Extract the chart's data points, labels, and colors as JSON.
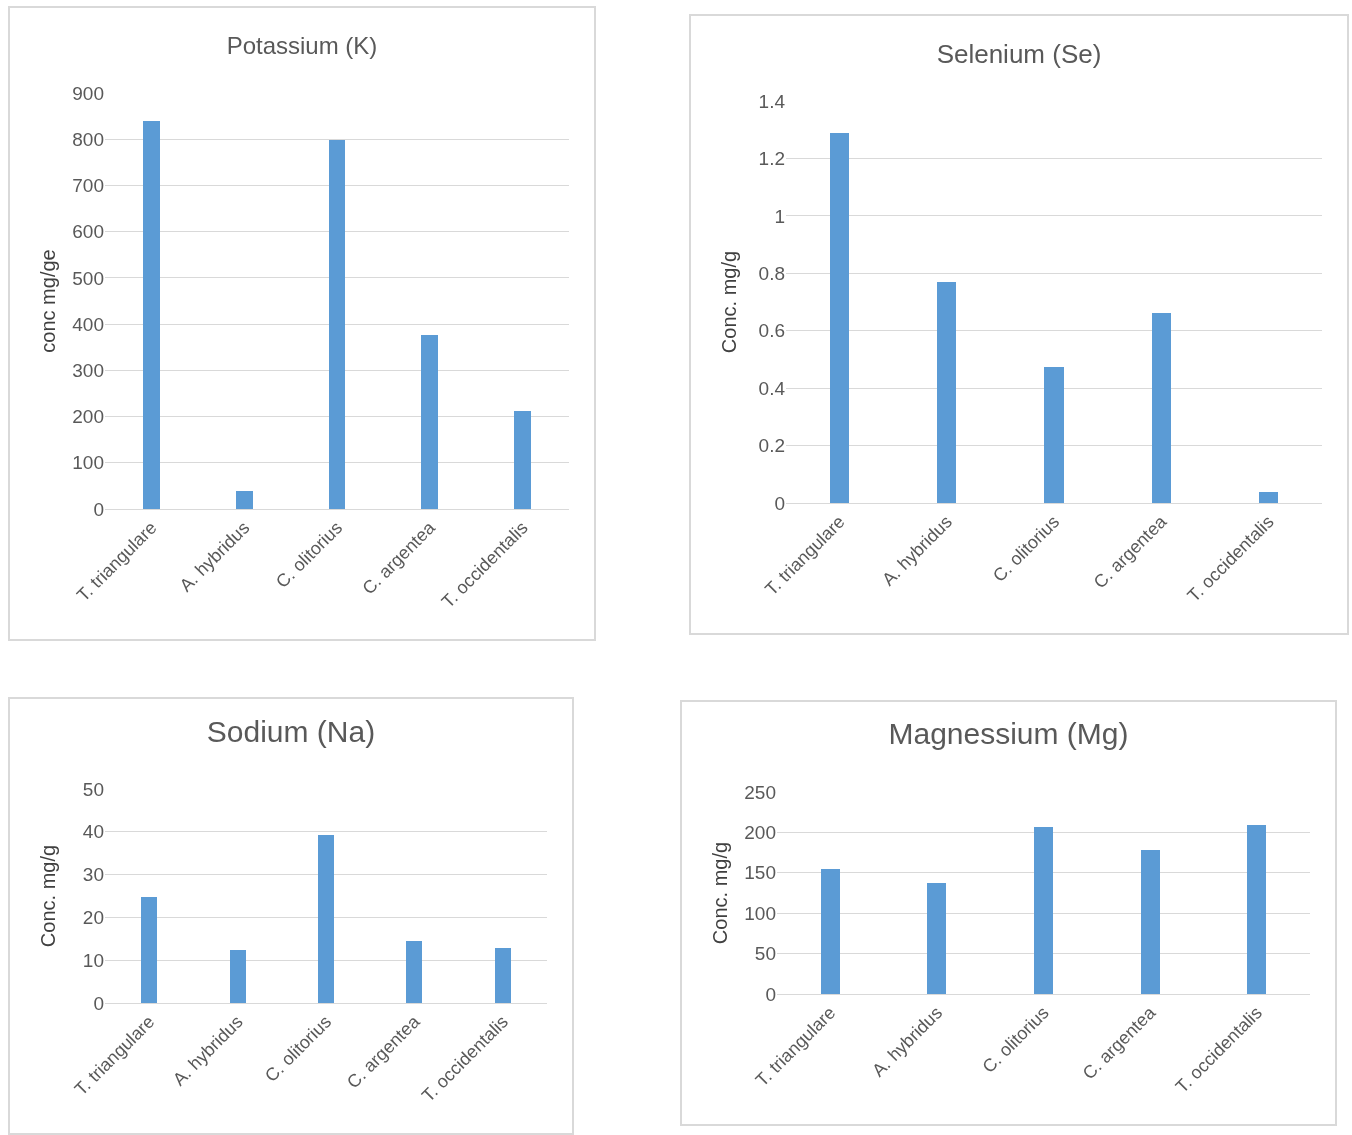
{
  "chart_data": [
    {
      "type": "bar",
      "title": "Potassium (K)",
      "ylabel": "conc mg/ge",
      "categories": [
        "T. triangulare",
        "A. hybridus",
        "C. olitorius",
        "C. argentea",
        "T. occidentalis"
      ],
      "values": [
        840,
        40,
        798,
        376,
        213
      ],
      "color": "#5b9bd5",
      "ylim": [
        0,
        900
      ],
      "yticks": [
        0,
        100,
        200,
        300,
        400,
        500,
        600,
        700,
        800,
        900
      ],
      "grid": "y"
    },
    {
      "type": "bar",
      "title": "Selenium (Se)",
      "ylabel": "Conc. mg/g",
      "categories": [
        "T. triangulare",
        "A. hybridus",
        "C. olitorius",
        "C. argentea",
        "T. occidentalis"
      ],
      "values": [
        1.29,
        0.77,
        0.475,
        0.66,
        0.04
      ],
      "color": "#5b9bd5",
      "ylim": [
        0,
        1.4
      ],
      "yticks": [
        0,
        0.2,
        0.4,
        0.6,
        0.8,
        1,
        1.2,
        1.4
      ],
      "grid": "y"
    },
    {
      "type": "bar",
      "title": "Sodium (Na)",
      "ylabel": "Conc. mg/g",
      "categories": [
        "T. triangulare",
        "A. hybridus",
        "C. olitorius",
        "C. argentea",
        "T. occidentalis"
      ],
      "values": [
        24.8,
        12.3,
        39.3,
        14.6,
        12.8
      ],
      "color": "#5b9bd5",
      "ylim": [
        0,
        50
      ],
      "yticks": [
        0,
        10,
        20,
        30,
        40,
        50
      ],
      "grid": "y"
    },
    {
      "type": "bar",
      "title": "Magnessium (Mg)",
      "ylabel": "Conc. mg/g",
      "categories": [
        "T. triangulare",
        "A. hybridus",
        "C. olitorius",
        "C. argentea",
        "T. occidentalis"
      ],
      "values": [
        155,
        137,
        207,
        178,
        209
      ],
      "color": "#5b9bd5",
      "ylim": [
        0,
        250
      ],
      "yticks": [
        0,
        50,
        100,
        150,
        200,
        250
      ],
      "grid": "y"
    }
  ]
}
